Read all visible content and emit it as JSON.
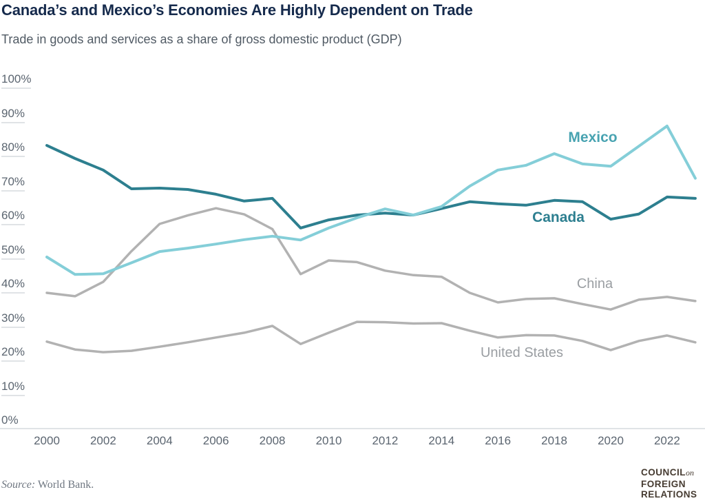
{
  "header": {
    "title": "Canada’s and Mexico’s Economies Are Highly Dependent on Trade",
    "subtitle": "Trade in goods and services as a share of gross domestic product (GDP)"
  },
  "chart_data": {
    "type": "line",
    "x": [
      2000,
      2001,
      2002,
      2003,
      2004,
      2005,
      2006,
      2007,
      2008,
      2009,
      2010,
      2011,
      2012,
      2013,
      2014,
      2015,
      2016,
      2017,
      2018,
      2019,
      2020,
      2021,
      2022,
      2023
    ],
    "series": [
      {
        "name": "China",
        "color": "#b2b2b2",
        "stroke_width": 3.5,
        "values": [
          39.8,
          38.8,
          43.0,
          52.0,
          60.0,
          62.5,
          64.6,
          62.8,
          58.5,
          45.3,
          49.3,
          48.8,
          46.3,
          45.0,
          44.5,
          39.8,
          37.0,
          38.0,
          38.2,
          36.5,
          34.9,
          37.8,
          38.6,
          37.4
        ]
      },
      {
        "name": "United States",
        "color": "#b2b2b2",
        "stroke_width": 3.5,
        "values": [
          25.5,
          23.2,
          22.4,
          22.8,
          24.0,
          25.3,
          26.7,
          28.1,
          30.1,
          24.8,
          28.1,
          31.3,
          31.2,
          30.8,
          30.9,
          28.7,
          26.7,
          27.4,
          27.3,
          25.7,
          23.0,
          25.7,
          27.3,
          25.3
        ]
      },
      {
        "name": "Canada",
        "color": "#2d7f8f",
        "stroke_width": 4,
        "values": [
          83.0,
          79.2,
          75.8,
          70.3,
          70.5,
          70.1,
          68.7,
          66.7,
          67.5,
          58.8,
          61.2,
          62.6,
          63.2,
          62.6,
          64.5,
          66.5,
          65.9,
          65.5,
          66.9,
          66.5,
          61.4,
          62.9,
          67.9,
          67.5
        ]
      },
      {
        "name": "Mexico",
        "color": "#84ced8",
        "stroke_width": 4,
        "values": [
          50.3,
          45.2,
          45.4,
          48.6,
          51.9,
          52.9,
          54.1,
          55.4,
          56.4,
          55.3,
          58.8,
          61.8,
          64.4,
          62.6,
          65.1,
          71.1,
          75.8,
          77.2,
          80.6,
          77.6,
          76.9,
          82.8,
          88.7,
          73.4
        ]
      }
    ],
    "series_labels": [
      {
        "text": "Mexico",
        "color": "#48a3b1"
      },
      {
        "text": "Canada",
        "color": "#2d7f90"
      },
      {
        "text": "China",
        "color": "#9a9ea2"
      },
      {
        "text": "United States",
        "color": "#9a9ea2"
      }
    ],
    "yticks": [
      {
        "value": 100,
        "label": "100%"
      },
      {
        "value": 90,
        "label": "90%"
      },
      {
        "value": 80,
        "label": "80%"
      },
      {
        "value": 70,
        "label": "70%"
      },
      {
        "value": 60,
        "label": "60%"
      },
      {
        "value": 50,
        "label": "50%"
      },
      {
        "value": 40,
        "label": "40%"
      },
      {
        "value": 30,
        "label": "30%"
      },
      {
        "value": 20,
        "label": "20%"
      },
      {
        "value": 10,
        "label": "10%"
      },
      {
        "value": 0,
        "label": "0%"
      }
    ],
    "xticks": [
      "2000",
      "2002",
      "2004",
      "2006",
      "2008",
      "2010",
      "2012",
      "2014",
      "2016",
      "2018",
      "2020",
      "2022"
    ],
    "ylim": [
      0,
      100
    ],
    "grid": "left-tick-stubs-only",
    "legend": "inline-line-labels"
  },
  "footer": {
    "source_prefix": "Source:",
    "source_text": " World Bank.",
    "logo_line1": "COUNCIL",
    "logo_on": "on",
    "logo_line2": "FOREIGN",
    "logo_line3": "RELATIONS"
  }
}
